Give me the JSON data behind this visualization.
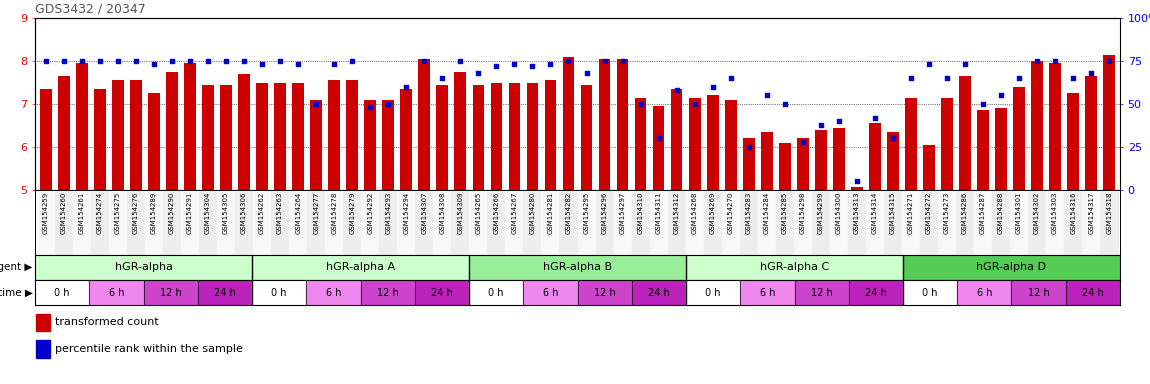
{
  "title": "GDS3432 / 20347",
  "samples": [
    "GSM154259",
    "GSM154260",
    "GSM154261",
    "GSM154274",
    "GSM154275",
    "GSM154276",
    "GSM154289",
    "GSM154290",
    "GSM154291",
    "GSM154304",
    "GSM154305",
    "GSM154306",
    "GSM154262",
    "GSM154263",
    "GSM154264",
    "GSM154277",
    "GSM154278",
    "GSM154279",
    "GSM154292",
    "GSM154293",
    "GSM154294",
    "GSM154307",
    "GSM154308",
    "GSM154309",
    "GSM154265",
    "GSM154266",
    "GSM154267",
    "GSM154280",
    "GSM154281",
    "GSM154282",
    "GSM154295",
    "GSM154296",
    "GSM154297",
    "GSM154310",
    "GSM154311",
    "GSM154312",
    "GSM154268",
    "GSM154269",
    "GSM154270",
    "GSM154283",
    "GSM154284",
    "GSM154285",
    "GSM154298",
    "GSM154299",
    "GSM154300",
    "GSM154313",
    "GSM154314",
    "GSM154315",
    "GSM154271",
    "GSM154272",
    "GSM154273",
    "GSM154286",
    "GSM154287",
    "GSM154288",
    "GSM154301",
    "GSM154302",
    "GSM154303",
    "GSM154316",
    "GSM154317",
    "GSM154318"
  ],
  "bar_values": [
    7.35,
    7.65,
    7.95,
    7.35,
    7.55,
    7.55,
    7.25,
    7.75,
    7.95,
    7.45,
    7.45,
    7.7,
    7.5,
    7.5,
    7.5,
    7.1,
    7.55,
    7.55,
    7.1,
    7.1,
    7.35,
    8.05,
    7.45,
    7.75,
    7.45,
    7.5,
    7.5,
    7.5,
    7.55,
    8.1,
    7.45,
    8.05,
    8.05,
    7.15,
    6.95,
    7.35,
    7.15,
    7.2,
    7.1,
    6.2,
    6.35,
    6.1,
    6.2,
    6.4,
    6.45,
    5.08,
    6.55,
    6.35,
    7.15,
    6.05,
    7.15,
    7.65,
    6.85,
    6.9,
    7.4,
    8.0,
    7.95,
    7.25,
    7.65,
    8.15
  ],
  "dot_values": [
    75,
    75,
    75,
    75,
    75,
    75,
    73,
    75,
    75,
    75,
    75,
    75,
    73,
    75,
    73,
    50,
    73,
    75,
    48,
    50,
    60,
    75,
    65,
    75,
    68,
    72,
    73,
    72,
    73,
    75,
    68,
    75,
    75,
    50,
    30,
    58,
    50,
    60,
    65,
    25,
    55,
    50,
    28,
    38,
    40,
    5,
    42,
    30,
    65,
    73,
    65,
    73,
    50,
    55,
    65,
    75,
    75,
    65,
    68,
    75
  ],
  "ylim": [
    5,
    9
  ],
  "yticks": [
    5,
    6,
    7,
    8,
    9
  ],
  "right_yticks": [
    0,
    25,
    50,
    75,
    100
  ],
  "right_yticklabels": [
    "0",
    "25",
    "50",
    "75",
    "100%"
  ],
  "bar_color": "#cc0000",
  "dot_color": "#0000cc",
  "agents": [
    "hGR-alpha",
    "hGR-alpha A",
    "hGR-alpha B",
    "hGR-alpha C",
    "hGR-alpha D"
  ],
  "times": [
    "0 h",
    "6 h",
    "12 h",
    "24 h"
  ],
  "time_colors": [
    "#ffffff",
    "#ee88ee",
    "#cc44cc",
    "#bb22bb"
  ],
  "n_per_agent": 12,
  "n_per_time": 3
}
